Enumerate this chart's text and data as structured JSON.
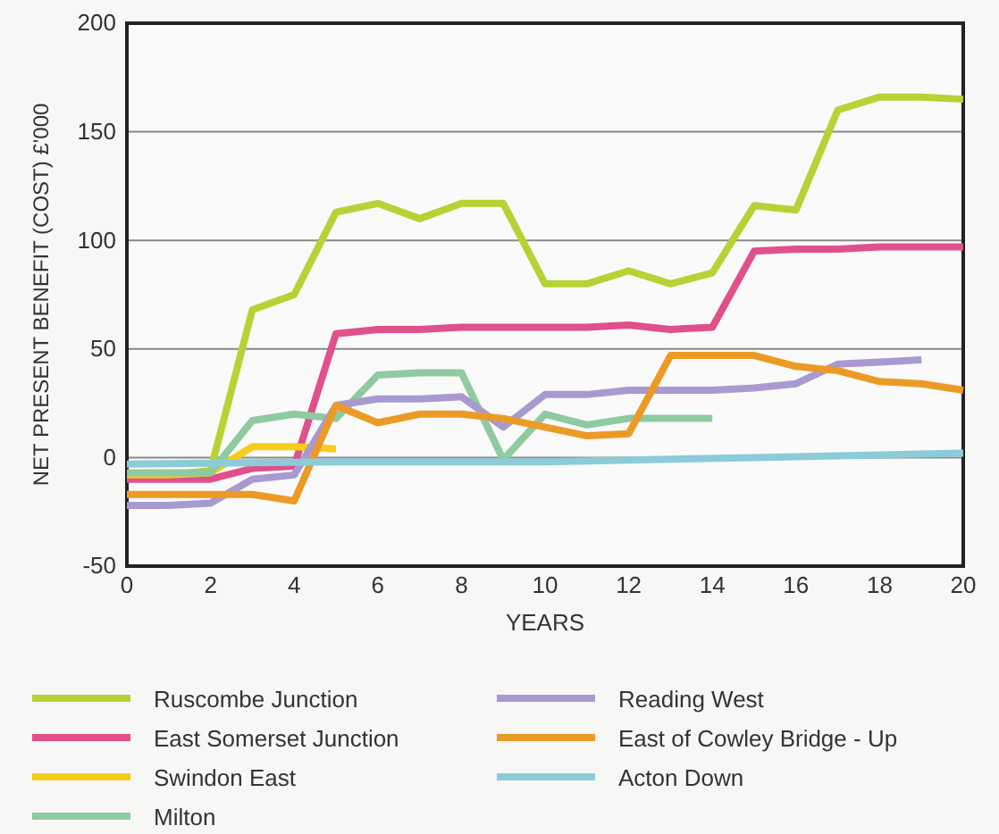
{
  "chart_data": {
    "type": "line",
    "xlabel": "YEARS",
    "ylabel": "NET PRESENT BENEFIT (COST) £'000",
    "xlim": [
      0,
      20
    ],
    "ylim": [
      -50,
      200
    ],
    "xticks": [
      0,
      2,
      4,
      6,
      8,
      10,
      12,
      14,
      16,
      18,
      20
    ],
    "yticks": [
      -50,
      0,
      50,
      100,
      150,
      200
    ],
    "grid": "y",
    "legend": "bottom",
    "line_style": "solid",
    "marker": "none",
    "series": [
      {
        "name": "Ruscombe Junction",
        "color": "#b5d334",
        "x": [
          0,
          1,
          2,
          3,
          4,
          5,
          6,
          7,
          8,
          9,
          10,
          11,
          12,
          13,
          14,
          15,
          16,
          17,
          18,
          19,
          20
        ],
        "values": [
          -8,
          -8,
          -6,
          68,
          75,
          113,
          117,
          110,
          117,
          117,
          80,
          80,
          86,
          80,
          85,
          116,
          114,
          160,
          166,
          166,
          165
        ]
      },
      {
        "name": "East Somerset Junction",
        "color": "#e0508a",
        "x": [
          0,
          1,
          2,
          3,
          4,
          5,
          6,
          7,
          8,
          9,
          10,
          11,
          12,
          13,
          14,
          15,
          16,
          17,
          18,
          19,
          20
        ],
        "values": [
          -10,
          -10,
          -10,
          -5,
          -4,
          57,
          59,
          59,
          60,
          60,
          60,
          60,
          61,
          59,
          60,
          95,
          96,
          96,
          97,
          97,
          97
        ]
      },
      {
        "name": "Swindon East",
        "color": "#f5cc1c",
        "x": [
          0,
          1,
          2,
          3,
          4,
          5
        ],
        "values": [
          -8,
          -8,
          -7,
          5,
          5,
          4
        ]
      },
      {
        "name": "Milton",
        "color": "#8fcaa0",
        "x": [
          0,
          1,
          2,
          3,
          4,
          5,
          6,
          7,
          8,
          9,
          10,
          11,
          12,
          13,
          14
        ],
        "values": [
          -7,
          -7,
          -7,
          17,
          20,
          18,
          38,
          39,
          39,
          -1,
          20,
          15,
          18,
          18,
          18
        ]
      },
      {
        "name": "Reading West",
        "color": "#a89ad0",
        "x": [
          0,
          1,
          2,
          3,
          4,
          5,
          6,
          7,
          8,
          9,
          10,
          11,
          12,
          13,
          14,
          15,
          16,
          17,
          18,
          19
        ],
        "values": [
          -22,
          -22,
          -21,
          -10,
          -8,
          24,
          27,
          27,
          28,
          14,
          29,
          29,
          31,
          31,
          31,
          32,
          34,
          43,
          44,
          45
        ]
      },
      {
        "name": "East of Cowley Bridge - Up",
        "color": "#ec9a26",
        "x": [
          0,
          1,
          2,
          3,
          4,
          5,
          6,
          7,
          8,
          9,
          10,
          11,
          12,
          13,
          14,
          15,
          16,
          17,
          18,
          19,
          20
        ],
        "values": [
          -17,
          -17,
          -17,
          -17,
          -20,
          24,
          16,
          20,
          20,
          18,
          14,
          10,
          11,
          47,
          47,
          47,
          42,
          40,
          35,
          34,
          31
        ]
      },
      {
        "name": "Acton Down",
        "color": "#8ccbd8",
        "x": [
          0,
          5,
          10,
          15,
          20
        ],
        "values": [
          -3,
          -2,
          -2,
          0,
          2
        ]
      }
    ]
  }
}
